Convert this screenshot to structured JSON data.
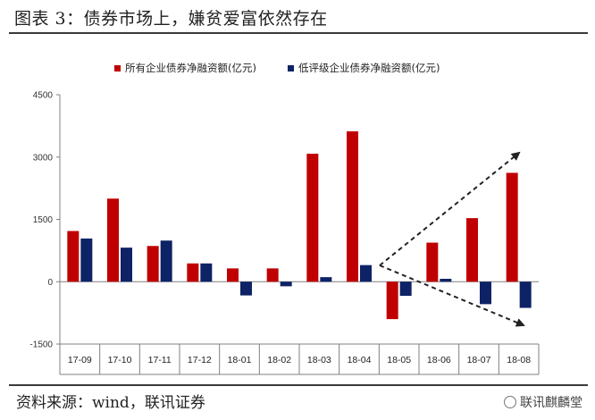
{
  "header": {
    "title": "图表 3：债券市场上，嫌贫爱富依然存在"
  },
  "footer": {
    "source": "资料来源：wind，联讯证券",
    "watermark": "联讯麒麟堂"
  },
  "colors": {
    "series1": "#c00000",
    "series2": "#0d2366",
    "axis": "#808080",
    "arrow": "#222222"
  },
  "chart_data": {
    "type": "bar",
    "categories": [
      "17-09",
      "17-10",
      "17-11",
      "17-12",
      "18-01",
      "18-02",
      "18-03",
      "18-04",
      "18-05",
      "18-06",
      "18-07",
      "18-08"
    ],
    "series": [
      {
        "name": "所有企业债券净融资额(亿元)",
        "values": [
          1220,
          2000,
          860,
          440,
          320,
          320,
          3080,
          3620,
          -900,
          940,
          1530,
          2620
        ]
      },
      {
        "name": "低评级企业债券净融资额(亿元)",
        "values": [
          1040,
          820,
          990,
          440,
          -330,
          -110,
          110,
          400,
          -340,
          70,
          -540,
          -630
        ]
      }
    ],
    "yticks": [
      -1500,
      0,
      1500,
      3000,
      4500
    ],
    "ylim": [
      -1500,
      4500
    ],
    "legend_position": "top",
    "grid": false,
    "annotations": "two dashed arrows diverging from 18-04 to 18-08: one rising, one falling"
  }
}
